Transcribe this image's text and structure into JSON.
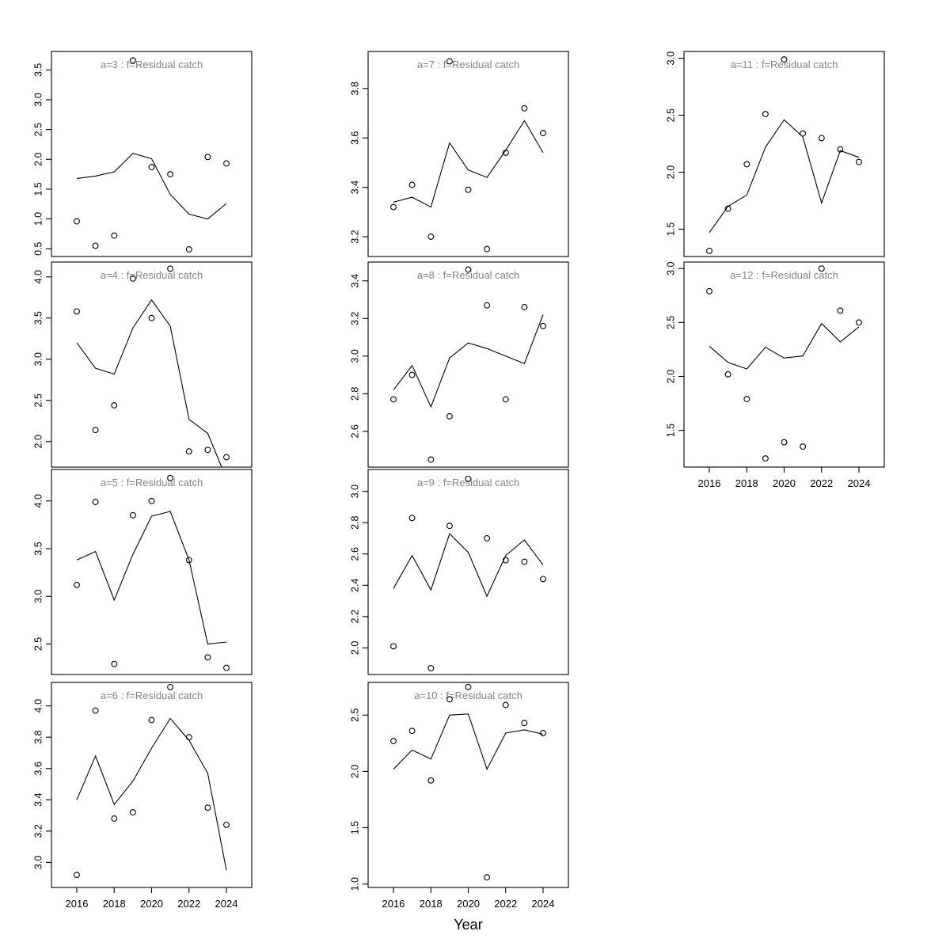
{
  "figure": {
    "xlabel": "Year",
    "background": "#ffffff",
    "axis_color": "#000000",
    "title_color": "#848484",
    "line_color": "#000000",
    "point_color": "#000000"
  },
  "chart_data": [
    {
      "type": "line+scatter",
      "title": "a=3 : f=Residual catch",
      "age": 3,
      "grid": {
        "col": 0,
        "row": 0
      },
      "x": [
        2016,
        2017,
        2018,
        2019,
        2020,
        2021,
        2022,
        2023,
        2024
      ],
      "xticks": [
        2016,
        2018,
        2020,
        2022,
        2024
      ],
      "show_xaxis": false,
      "yticks": [
        0.5,
        1.0,
        1.5,
        2.0,
        2.5,
        3.0,
        3.5
      ],
      "ylim": [
        0.37,
        3.81
      ],
      "series": [
        {
          "name": "observed",
          "style": "points",
          "values": [
            0.96,
            0.55,
            0.72,
            3.66,
            1.87,
            1.75,
            0.49,
            2.04,
            1.93
          ]
        },
        {
          "name": "fitted",
          "style": "line",
          "values": [
            1.68,
            1.72,
            1.79,
            2.1,
            2.01,
            1.41,
            1.08,
            1.0,
            1.26
          ]
        }
      ]
    },
    {
      "type": "line+scatter",
      "title": "a=4 : f=Residual catch",
      "age": 4,
      "grid": {
        "col": 0,
        "row": 1
      },
      "x": [
        2016,
        2017,
        2018,
        2019,
        2020,
        2021,
        2022,
        2023,
        2024
      ],
      "xticks": [
        2016,
        2018,
        2020,
        2022,
        2024
      ],
      "show_xaxis": false,
      "yticks": [
        2.0,
        2.5,
        3.0,
        3.5,
        4.0
      ],
      "ylim": [
        1.69,
        4.18
      ],
      "series": [
        {
          "name": "observed",
          "style": "points",
          "values": [
            3.58,
            2.14,
            2.44,
            3.98,
            3.5,
            4.1,
            1.88,
            1.9,
            1.81
          ]
        },
        {
          "name": "fitted",
          "style": "line",
          "values": [
            3.2,
            2.89,
            2.82,
            3.38,
            3.72,
            3.4,
            2.27,
            2.1,
            1.55
          ]
        }
      ]
    },
    {
      "type": "line+scatter",
      "title": "a=5 : f=Residual catch",
      "age": 5,
      "grid": {
        "col": 0,
        "row": 2
      },
      "x": [
        2016,
        2017,
        2018,
        2019,
        2020,
        2021,
        2022,
        2023,
        2024
      ],
      "xticks": [
        2016,
        2018,
        2020,
        2022,
        2024
      ],
      "show_xaxis": false,
      "yticks": [
        2.5,
        3.0,
        3.5,
        4.0
      ],
      "ylim": [
        2.18,
        4.33
      ],
      "series": [
        {
          "name": "observed",
          "style": "points",
          "values": [
            3.12,
            3.99,
            2.29,
            3.85,
            4.0,
            4.24,
            3.38,
            2.36,
            2.25
          ]
        },
        {
          "name": "fitted",
          "style": "line",
          "values": [
            3.38,
            3.47,
            2.96,
            3.44,
            3.84,
            3.89,
            3.38,
            2.5,
            2.52
          ]
        }
      ]
    },
    {
      "type": "line+scatter",
      "title": "a=6 : f=Residual catch",
      "age": 6,
      "grid": {
        "col": 0,
        "row": 3
      },
      "x": [
        2016,
        2017,
        2018,
        2019,
        2020,
        2021,
        2022,
        2023,
        2024
      ],
      "xticks": [
        2016,
        2018,
        2020,
        2022,
        2024
      ],
      "show_xaxis": true,
      "yticks": [
        3.0,
        3.2,
        3.4,
        3.6,
        3.8,
        4.0
      ],
      "ylim": [
        2.84,
        4.15
      ],
      "series": [
        {
          "name": "observed",
          "style": "points",
          "values": [
            2.92,
            3.97,
            3.28,
            3.32,
            3.91,
            4.12,
            3.8,
            3.35,
            3.24
          ]
        },
        {
          "name": "fitted",
          "style": "line",
          "values": [
            3.4,
            3.68,
            3.37,
            3.52,
            3.73,
            3.92,
            3.78,
            3.57,
            2.95
          ]
        }
      ]
    },
    {
      "type": "line+scatter",
      "title": "a=7 : f=Residual catch",
      "age": 7,
      "grid": {
        "col": 1,
        "row": 0
      },
      "x": [
        2016,
        2017,
        2018,
        2019,
        2020,
        2021,
        2022,
        2023,
        2024
      ],
      "xticks": [
        2016,
        2018,
        2020,
        2022,
        2024
      ],
      "show_xaxis": false,
      "yticks": [
        3.2,
        3.4,
        3.6,
        3.8
      ],
      "ylim": [
        3.12,
        3.95
      ],
      "series": [
        {
          "name": "observed",
          "style": "points",
          "values": [
            3.32,
            3.41,
            3.2,
            3.91,
            3.39,
            3.15,
            3.54,
            3.72,
            3.62
          ]
        },
        {
          "name": "fitted",
          "style": "line",
          "values": [
            3.34,
            3.36,
            3.32,
            3.58,
            3.47,
            3.44,
            3.55,
            3.67,
            3.54
          ]
        }
      ]
    },
    {
      "type": "line+scatter",
      "title": "a=8 : f=Residual catch",
      "age": 8,
      "grid": {
        "col": 1,
        "row": 1
      },
      "x": [
        2016,
        2017,
        2018,
        2019,
        2020,
        2021,
        2022,
        2023,
        2024
      ],
      "xticks": [
        2016,
        2018,
        2020,
        2022,
        2024
      ],
      "show_xaxis": false,
      "yticks": [
        2.6,
        2.8,
        3.0,
        3.2,
        3.4
      ],
      "ylim": [
        2.41,
        3.5
      ],
      "series": [
        {
          "name": "observed",
          "style": "points",
          "values": [
            2.77,
            2.9,
            2.45,
            2.68,
            3.46,
            3.27,
            2.77,
            3.26,
            3.16
          ]
        },
        {
          "name": "fitted",
          "style": "line",
          "values": [
            2.82,
            2.95,
            2.73,
            2.99,
            3.07,
            3.04,
            3.0,
            2.96,
            3.22
          ]
        }
      ]
    },
    {
      "type": "line+scatter",
      "title": "a=9 : f=Residual catch",
      "age": 9,
      "grid": {
        "col": 1,
        "row": 2
      },
      "x": [
        2016,
        2017,
        2018,
        2019,
        2020,
        2021,
        2022,
        2023,
        2024
      ],
      "xticks": [
        2016,
        2018,
        2020,
        2022,
        2024
      ],
      "show_xaxis": false,
      "yticks": [
        2.0,
        2.2,
        2.4,
        2.6,
        2.8,
        3.0
      ],
      "ylim": [
        1.83,
        3.14
      ],
      "series": [
        {
          "name": "observed",
          "style": "points",
          "values": [
            2.01,
            2.83,
            1.87,
            2.78,
            3.08,
            2.7,
            2.56,
            2.55,
            2.44
          ]
        },
        {
          "name": "fitted",
          "style": "line",
          "values": [
            2.38,
            2.59,
            2.37,
            2.73,
            2.61,
            2.33,
            2.59,
            2.69,
            2.53
          ]
        }
      ]
    },
    {
      "type": "line+scatter",
      "title": "a=10 : f=Residual catch",
      "age": 10,
      "grid": {
        "col": 1,
        "row": 3
      },
      "x": [
        2016,
        2017,
        2018,
        2019,
        2020,
        2021,
        2022,
        2023,
        2024
      ],
      "xticks": [
        2016,
        2018,
        2020,
        2022,
        2024
      ],
      "show_xaxis": true,
      "yticks": [
        1.0,
        1.5,
        2.0,
        2.5
      ],
      "ylim": [
        0.97,
        2.79
      ],
      "series": [
        {
          "name": "observed",
          "style": "points",
          "values": [
            2.27,
            2.36,
            1.92,
            2.64,
            2.75,
            1.06,
            2.59,
            2.43,
            2.34
          ]
        },
        {
          "name": "fitted",
          "style": "line",
          "values": [
            2.02,
            2.19,
            2.11,
            2.5,
            2.51,
            2.02,
            2.34,
            2.37,
            2.33
          ]
        }
      ]
    },
    {
      "type": "line+scatter",
      "title": "a=11 : f=Residual catch",
      "age": 11,
      "grid": {
        "col": 2,
        "row": 0
      },
      "x": [
        2016,
        2017,
        2018,
        2019,
        2020,
        2021,
        2022,
        2023,
        2024
      ],
      "xticks": [
        2016,
        2018,
        2020,
        2022,
        2024
      ],
      "show_xaxis": false,
      "yticks": [
        1.5,
        2.0,
        2.5,
        3.0
      ],
      "ylim": [
        1.26,
        3.06
      ],
      "series": [
        {
          "name": "observed",
          "style": "points",
          "values": [
            1.31,
            1.68,
            2.07,
            2.51,
            2.99,
            2.34,
            2.3,
            2.2,
            2.09
          ]
        },
        {
          "name": "fitted",
          "style": "line",
          "values": [
            1.47,
            1.7,
            1.8,
            2.22,
            2.46,
            2.31,
            1.73,
            2.19,
            2.13
          ]
        }
      ]
    },
    {
      "type": "line+scatter",
      "title": "a=12 : f=Residual catch",
      "age": 12,
      "grid": {
        "col": 2,
        "row": 1
      },
      "x": [
        2016,
        2017,
        2018,
        2019,
        2020,
        2021,
        2022,
        2023,
        2024
      ],
      "xticks": [
        2016,
        2018,
        2020,
        2022,
        2024
      ],
      "show_xaxis": true,
      "yticks": [
        1.5,
        2.0,
        2.5,
        3.0
      ],
      "ylim": [
        1.16,
        3.06
      ],
      "series": [
        {
          "name": "observed",
          "style": "points",
          "values": [
            2.79,
            2.02,
            1.79,
            1.24,
            1.39,
            1.35,
            3.0,
            2.61,
            2.5
          ]
        },
        {
          "name": "fitted",
          "style": "line",
          "values": [
            2.28,
            2.13,
            2.07,
            2.27,
            2.17,
            2.19,
            2.49,
            2.32,
            2.46
          ]
        }
      ]
    }
  ]
}
